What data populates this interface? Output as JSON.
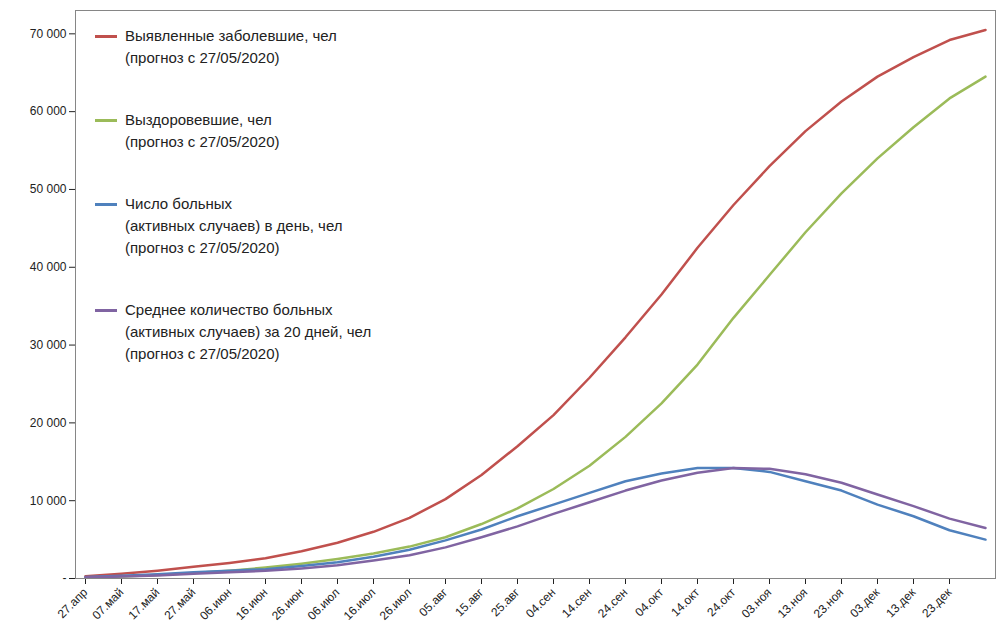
{
  "chart_data": {
    "type": "line",
    "categories": [
      "27.апр",
      "07.май",
      "17.май",
      "27.май",
      "06.июн",
      "16.июн",
      "26.июн",
      "06.июл",
      "16.июл",
      "26.июл",
      "05.авг",
      "15.авг",
      "25.авг",
      "04.сен",
      "14.сен",
      "24.сен",
      "04.окт",
      "14.окт",
      "24.окт",
      "03.ноя",
      "13.ноя",
      "23.ноя",
      "03.дек",
      "13.дек",
      "23.дек",
      null
    ],
    "series": [
      {
        "name": "Выявленные заболевшие, чел\n(прогноз с 27/05/2020)",
        "color": "#c0504d",
        "values": [
          300,
          600,
          1000,
          1500,
          2000,
          2600,
          3500,
          4600,
          6000,
          7800,
          10200,
          13300,
          17000,
          21000,
          25800,
          31000,
          36500,
          42500,
          48000,
          53000,
          57500,
          61300,
          64500,
          67000,
          69200,
          70500
        ]
      },
      {
        "name": "Выздоровевшие, чел\n(прогноз с 27/05/2020)",
        "color": "#9bbb59",
        "values": [
          100,
          250,
          450,
          700,
          1000,
          1400,
          1900,
          2500,
          3200,
          4100,
          5300,
          7000,
          9000,
          11500,
          14500,
          18200,
          22500,
          27500,
          33500,
          39000,
          44500,
          49500,
          54000,
          58000,
          61700,
          64500
        ]
      },
      {
        "name": "Число больных\n(активных случаев) в день, чел\n(прогноз с 27/05/2020)",
        "color": "#4f81bd",
        "values": [
          200,
          350,
          550,
          800,
          1000,
          1200,
          1600,
          2100,
          2800,
          3700,
          4900,
          6300,
          8000,
          9500,
          11000,
          12500,
          13500,
          14200,
          14200,
          13700,
          12500,
          11300,
          9500,
          8000,
          6200,
          5000
        ]
      },
      {
        "name": "Среднее количество больных\n(активных случаев) за 20 дней, чел\n(прогноз с 27/05/2020)",
        "color": "#8064a2",
        "values": [
          150,
          250,
          400,
          600,
          800,
          1000,
          1300,
          1700,
          2300,
          3000,
          4000,
          5300,
          6700,
          8300,
          9800,
          11300,
          12600,
          13600,
          14200,
          14100,
          13400,
          12300,
          10800,
          9300,
          7700,
          6500
        ]
      }
    ],
    "ylim": [
      0,
      73000
    ],
    "yticks": [
      {
        "value": 0,
        "label": "-"
      },
      {
        "value": 10000,
        "label": "10 000"
      },
      {
        "value": 20000,
        "label": "20 000"
      },
      {
        "value": 30000,
        "label": "30 000"
      },
      {
        "value": 40000,
        "label": "40 000"
      },
      {
        "value": 50000,
        "label": "50 000"
      },
      {
        "value": 60000,
        "label": "60 000"
      },
      {
        "value": 70000,
        "label": "70 000"
      }
    ],
    "grid": false,
    "legend": "upper left"
  }
}
